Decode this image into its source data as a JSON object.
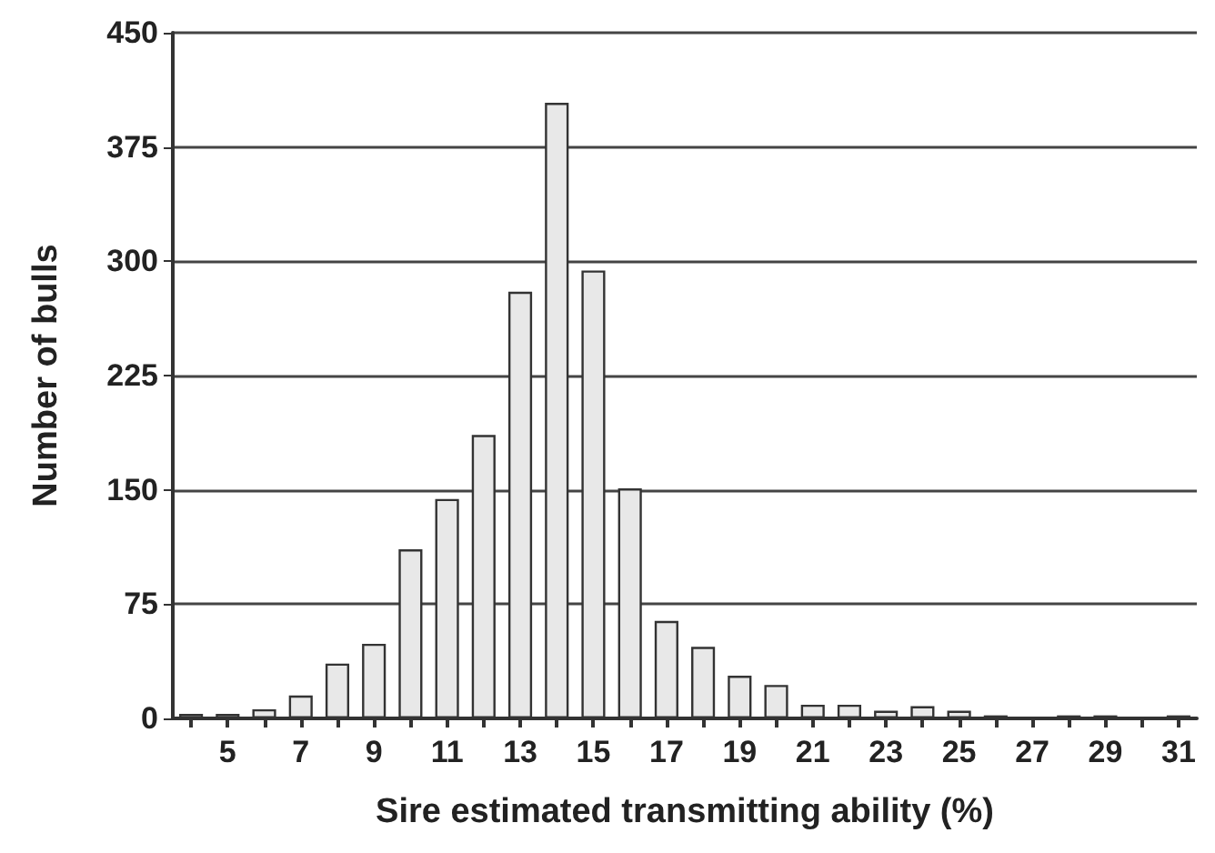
{
  "chart_data": {
    "type": "bar",
    "xlabel": "Sire estimated transmitting ability (%)",
    "ylabel": "Number of bulls",
    "categories": [
      null,
      "5",
      null,
      "7",
      null,
      "9",
      null,
      "11",
      null,
      "13",
      null,
      "15",
      null,
      "17",
      null,
      "19",
      null,
      "21",
      null,
      "23",
      null,
      "25",
      null,
      "27",
      null,
      "29",
      null,
      "31"
    ],
    "values": [
      3,
      3,
      6,
      15,
      36,
      49,
      111,
      144,
      186,
      280,
      404,
      294,
      151,
      64,
      47,
      28,
      22,
      9,
      9,
      5,
      8,
      5,
      2,
      0,
      2,
      2,
      0,
      2
    ],
    "color": "#e8e8e8",
    "ylim": [
      0,
      450
    ],
    "yticks": [
      0,
      75,
      150,
      225,
      300,
      375,
      450
    ],
    "grid": "y"
  }
}
